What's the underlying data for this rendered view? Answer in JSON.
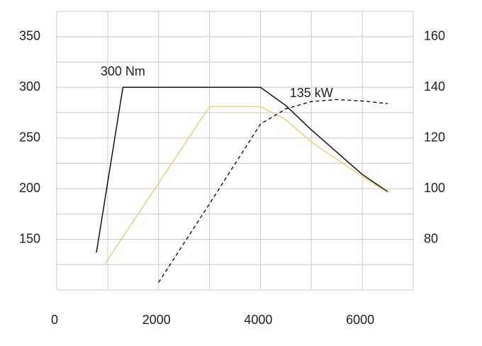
{
  "chart_data": {
    "type": "line",
    "annotations": [
      {
        "text": "300 Nm",
        "x": 1300,
        "y": 315
      },
      {
        "text": "135 kW",
        "x": 5000,
        "y": 137.5,
        "axis": "y2"
      }
    ],
    "xlim": [
      0,
      7000
    ],
    "xticks": [
      0,
      2000,
      4000,
      6000
    ],
    "xgrid": [
      0,
      1000,
      2000,
      3000,
      4000,
      5000,
      6000,
      7000
    ],
    "ylim": [
      100,
      375
    ],
    "yticks": [
      150,
      200,
      250,
      300,
      350
    ],
    "ygrid": [
      100,
      125,
      150,
      175,
      200,
      225,
      250,
      275,
      300,
      325,
      350,
      375
    ],
    "y2lim": [
      60,
      170
    ],
    "y2ticks": [
      80,
      100,
      120,
      140,
      160
    ],
    "grid": true,
    "series": [
      {
        "color": "#111111",
        "dash": false,
        "x": [
          780,
          1300,
          4000,
          4500,
          5000,
          6000,
          6500
        ],
        "values": [
          137,
          300,
          300,
          282,
          258,
          214,
          197
        ]
      },
      {
        "color": "#e6d47a",
        "dash": false,
        "x": [
          950,
          3000,
          4000,
          4500,
          5000,
          6000,
          6500
        ],
        "values": [
          126,
          281,
          281,
          268,
          246,
          212,
          196
        ]
      },
      {
        "color": "#111111",
        "dash": true,
        "axis": "y2",
        "x": [
          2000,
          3000,
          4000,
          4500,
          5000,
          5500,
          6000,
          6500
        ],
        "values": [
          63,
          94,
          125.5,
          131.5,
          134.4,
          135.2,
          134.6,
          133.6
        ]
      }
    ]
  }
}
